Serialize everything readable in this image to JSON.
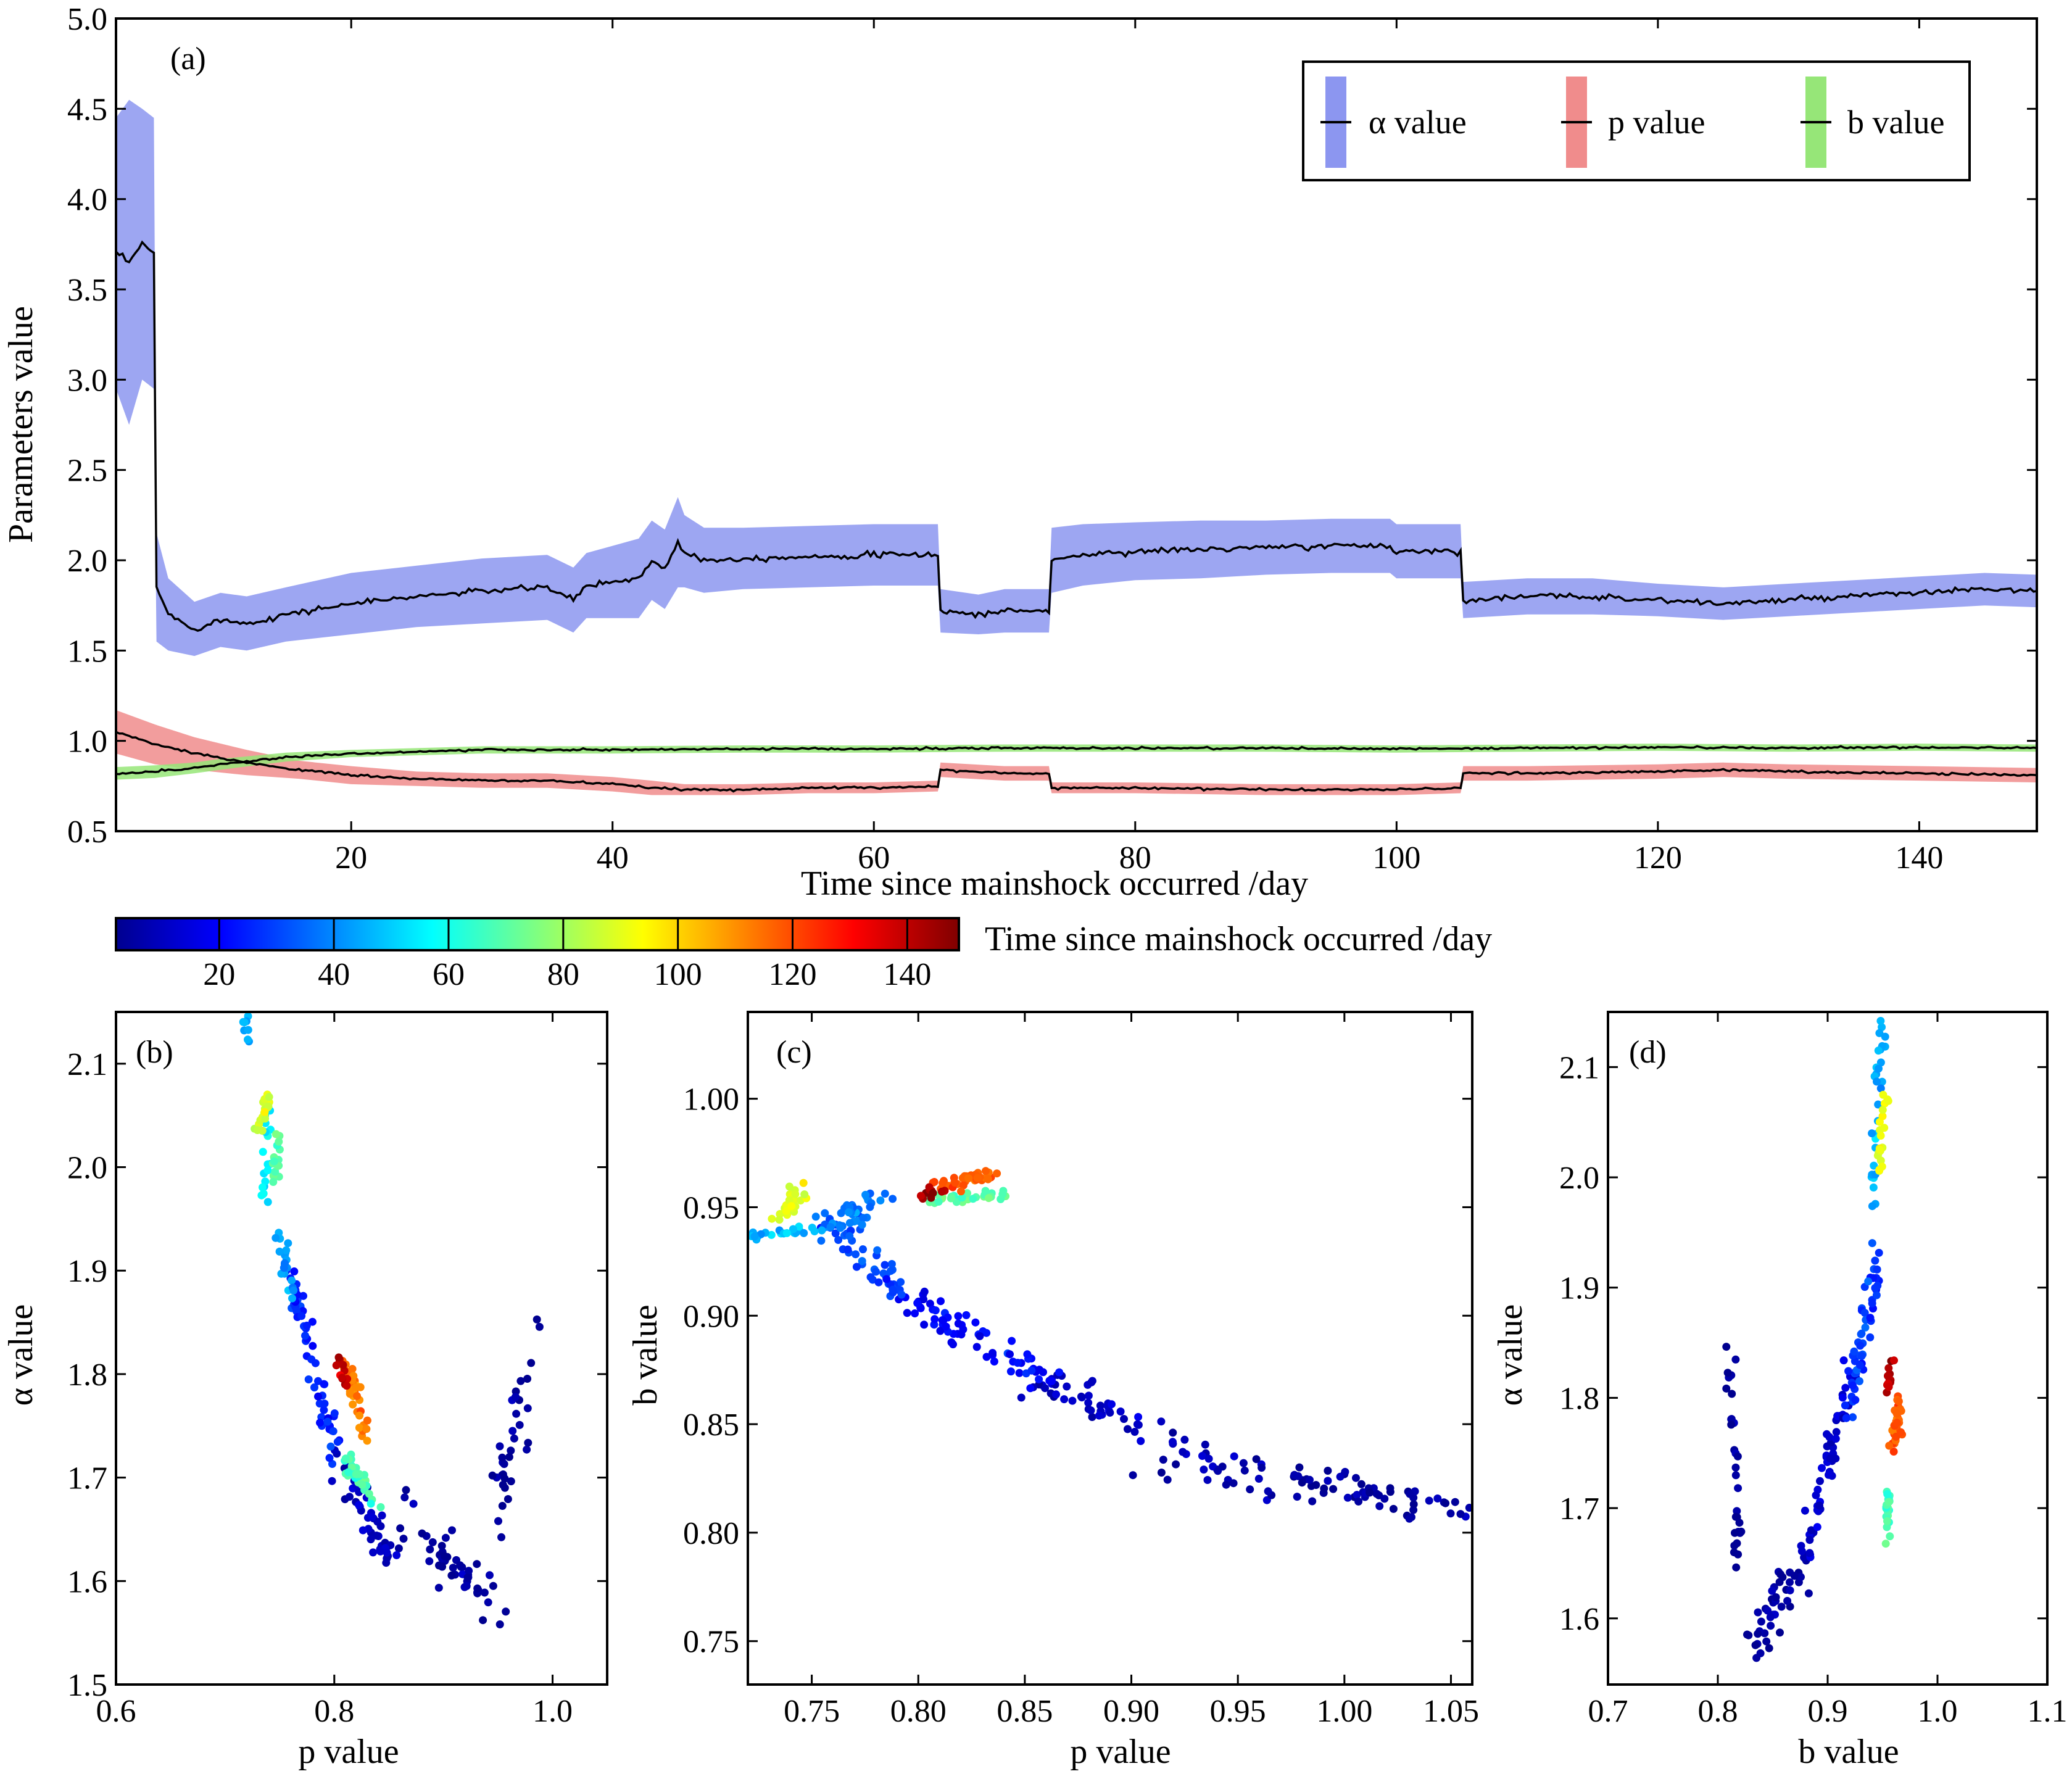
{
  "chart_data": [
    {
      "panel": "(a)",
      "type": "line",
      "xlabel": "Time since mainshock occurred /day",
      "ylabel": "Parameters value",
      "xlim": [
        2,
        149
      ],
      "ylim": [
        0.5,
        5.0
      ],
      "xticks": [
        20,
        40,
        60,
        80,
        100,
        120,
        140
      ],
      "yticks": [
        0.5,
        1.0,
        1.5,
        2.0,
        2.5,
        3.0,
        3.5,
        4.0,
        4.5,
        5.0
      ],
      "ytick_labels": [
        "0.5",
        "1.0",
        "1.5",
        "2.0",
        "2.5",
        "3.0",
        "3.5",
        "4.0",
        "4.5",
        "5.0"
      ],
      "legend": {
        "position": "top-right",
        "entries": [
          "α value",
          "p value",
          "b value"
        ]
      },
      "series": [
        {
          "name": "α value",
          "band_color": "#8c96f0",
          "line_color": "#000000",
          "x": [
            2,
            3,
            4,
            4.9,
            5.1,
            6,
            8,
            10,
            12,
            15,
            20,
            25,
            30,
            35,
            37,
            38,
            40,
            42,
            43,
            44,
            45,
            45.5,
            47,
            50,
            55,
            60,
            64.9,
            65.1,
            68,
            70,
            73.4,
            73.6,
            76,
            80,
            85,
            90,
            95,
            99.5,
            100,
            104.9,
            105.1,
            110,
            115,
            120,
            125,
            130,
            135,
            140,
            145,
            149
          ],
          "y": [
            3.7,
            3.65,
            3.75,
            3.7,
            1.85,
            1.7,
            1.62,
            1.67,
            1.65,
            1.7,
            1.76,
            1.8,
            1.83,
            1.85,
            1.78,
            1.86,
            1.88,
            1.9,
            2.0,
            1.95,
            2.1,
            2.05,
            2.0,
            2.01,
            2.02,
            2.03,
            2.03,
            1.72,
            1.7,
            1.72,
            1.72,
            2.0,
            2.03,
            2.05,
            2.06,
            2.07,
            2.08,
            2.08,
            2.05,
            2.05,
            1.78,
            1.8,
            1.8,
            1.78,
            1.76,
            1.78,
            1.8,
            1.82,
            1.84,
            1.83
          ],
          "band_halfwidth": [
            0.75,
            0.9,
            0.75,
            0.75,
            0.3,
            0.2,
            0.15,
            0.15,
            0.15,
            0.15,
            0.17,
            0.17,
            0.18,
            0.18,
            0.18,
            0.18,
            0.2,
            0.22,
            0.22,
            0.22,
            0.25,
            0.2,
            0.18,
            0.17,
            0.17,
            0.17,
            0.17,
            0.12,
            0.11,
            0.12,
            0.12,
            0.18,
            0.17,
            0.16,
            0.16,
            0.15,
            0.15,
            0.15,
            0.15,
            0.15,
            0.1,
            0.1,
            0.1,
            0.09,
            0.09,
            0.09,
            0.09,
            0.09,
            0.09,
            0.09
          ]
        },
        {
          "name": "p value",
          "band_color": "#f08c8c",
          "line_color": "#000000",
          "x": [
            2,
            5,
            8,
            12,
            16,
            20,
            25,
            30,
            35,
            40,
            43,
            45.5,
            50,
            55,
            60,
            64.9,
            65.1,
            70,
            73.4,
            73.6,
            80,
            90,
            100,
            104.9,
            105.1,
            110,
            120,
            125,
            130,
            140,
            149
          ],
          "y": [
            1.05,
            0.98,
            0.93,
            0.88,
            0.84,
            0.81,
            0.79,
            0.78,
            0.78,
            0.76,
            0.74,
            0.73,
            0.73,
            0.74,
            0.74,
            0.75,
            0.84,
            0.82,
            0.82,
            0.74,
            0.74,
            0.73,
            0.73,
            0.74,
            0.82,
            0.82,
            0.83,
            0.84,
            0.83,
            0.82,
            0.81
          ],
          "band_halfwidth": [
            0.12,
            0.11,
            0.09,
            0.07,
            0.05,
            0.05,
            0.04,
            0.04,
            0.04,
            0.04,
            0.04,
            0.03,
            0.03,
            0.03,
            0.03,
            0.03,
            0.04,
            0.04,
            0.04,
            0.03,
            0.03,
            0.03,
            0.03,
            0.03,
            0.04,
            0.04,
            0.04,
            0.04,
            0.04,
            0.04,
            0.04
          ]
        },
        {
          "name": "b value",
          "band_color": "#96e678",
          "line_color": "#000000",
          "x": [
            2,
            5,
            8,
            10,
            15,
            20,
            25,
            30,
            40,
            50,
            60,
            70,
            80,
            90,
            100,
            110,
            120,
            130,
            140,
            149
          ],
          "y": [
            0.82,
            0.83,
            0.85,
            0.87,
            0.91,
            0.93,
            0.94,
            0.95,
            0.95,
            0.955,
            0.955,
            0.96,
            0.96,
            0.96,
            0.955,
            0.96,
            0.965,
            0.96,
            0.965,
            0.96
          ],
          "band_halfwidth": [
            0.035,
            0.035,
            0.03,
            0.03,
            0.025,
            0.02,
            0.02,
            0.02,
            0.02,
            0.02,
            0.02,
            0.02,
            0.02,
            0.02,
            0.02,
            0.02,
            0.02,
            0.02,
            0.02,
            0.02
          ]
        }
      ]
    },
    {
      "panel": "colorbar",
      "type": "colorbar",
      "label": "Time since mainshock occurred /day",
      "range": [
        2,
        149
      ],
      "ticks": [
        20,
        40,
        60,
        80,
        100,
        120,
        140
      ],
      "colormap": [
        "#00008f",
        "#0000ff",
        "#0080ff",
        "#00ffff",
        "#80ff80",
        "#ffff00",
        "#ff8000",
        "#ff0000",
        "#800000"
      ]
    },
    {
      "panel": "(b)",
      "type": "scatter",
      "xlabel": "p value",
      "ylabel": "α value",
      "xlim": [
        0.6,
        1.05
      ],
      "ylim": [
        1.5,
        2.15
      ],
      "xticks": [
        0.6,
        0.8,
        1.0
      ],
      "xtick_labels": [
        "0.6",
        "0.8",
        "1.0"
      ],
      "yticks": [
        1.5,
        1.6,
        1.7,
        1.8,
        1.9,
        2.0,
        2.1
      ],
      "ytick_labels": [
        "1.5",
        "1.6",
        "1.7",
        "1.8",
        "1.9",
        "2.0",
        "2.1"
      ],
      "clusters": [
        {
          "t": 5,
          "x0": 0.95,
          "y0": 1.57,
          "x1": 0.86,
          "y1": 1.67,
          "n": 50,
          "spread": [
            0.015,
            0.02
          ]
        },
        {
          "t": 3,
          "x0": 0.95,
          "y0": 1.65,
          "x1": 0.98,
          "y1": 1.83,
          "n": 35,
          "spread": [
            0.01,
            0.03
          ]
        },
        {
          "t": 10,
          "x0": 0.85,
          "y0": 1.62,
          "x1": 0.8,
          "y1": 1.72,
          "n": 45,
          "spread": [
            0.01,
            0.015
          ]
        },
        {
          "t": 25,
          "x0": 0.8,
          "y0": 1.72,
          "x1": 0.76,
          "y1": 1.9,
          "n": 55,
          "spread": [
            0.008,
            0.02
          ]
        },
        {
          "t": 43,
          "x0": 0.76,
          "y0": 1.88,
          "x1": 0.75,
          "y1": 1.94,
          "n": 20,
          "spread": [
            0.005,
            0.01
          ]
        },
        {
          "t": 46,
          "x0": 0.72,
          "y0": 2.12,
          "x1": 0.72,
          "y1": 2.15,
          "n": 10,
          "spread": [
            0.004,
            0.01
          ]
        },
        {
          "t": 55,
          "x0": 0.735,
          "y0": 1.97,
          "x1": 0.74,
          "y1": 2.06,
          "n": 20,
          "spread": [
            0.005,
            0.015
          ]
        },
        {
          "t": 88,
          "x0": 0.73,
          "y0": 2.03,
          "x1": 0.74,
          "y1": 2.07,
          "n": 20,
          "spread": [
            0.005,
            0.01
          ]
        },
        {
          "t": 70,
          "x0": 0.745,
          "y0": 1.98,
          "x1": 0.75,
          "y1": 2.03,
          "n": 15,
          "spread": [
            0.005,
            0.01
          ]
        },
        {
          "t": 68,
          "x0": 0.81,
          "y0": 1.72,
          "x1": 0.84,
          "y1": 1.67,
          "n": 30,
          "spread": [
            0.006,
            0.01
          ]
        },
        {
          "t": 112,
          "x0": 0.81,
          "y0": 1.81,
          "x1": 0.83,
          "y1": 1.74,
          "n": 35,
          "spread": [
            0.006,
            0.01
          ]
        },
        {
          "t": 140,
          "x0": 0.8,
          "y0": 1.83,
          "x1": 0.81,
          "y1": 1.79,
          "n": 12,
          "spread": [
            0.004,
            0.01
          ]
        }
      ]
    },
    {
      "panel": "(c)",
      "type": "scatter",
      "xlabel": "p value",
      "ylabel": "b value",
      "xlim": [
        0.72,
        1.06
      ],
      "ylim": [
        0.73,
        1.04
      ],
      "xticks": [
        0.75,
        0.8,
        0.85,
        0.9,
        0.95,
        1.0,
        1.05
      ],
      "xtick_labels": [
        "0.75",
        "0.80",
        "0.85",
        "0.90",
        "0.95",
        "1.00",
        "1.05"
      ],
      "yticks": [
        0.75,
        0.8,
        0.85,
        0.9,
        0.95,
        1.0
      ],
      "ytick_labels": [
        "0.75",
        "0.80",
        "0.85",
        "0.90",
        "0.95",
        "1.00"
      ],
      "clusters": [
        {
          "t": 5,
          "x0": 1.05,
          "y0": 0.81,
          "x1": 0.94,
          "y1": 0.83,
          "n": 80,
          "spread": [
            0.04,
            0.008
          ]
        },
        {
          "t": 10,
          "x0": 0.94,
          "y0": 0.83,
          "x1": 0.86,
          "y1": 0.87,
          "n": 60,
          "spread": [
            0.015,
            0.006
          ]
        },
        {
          "t": 20,
          "x0": 0.86,
          "y0": 0.87,
          "x1": 0.79,
          "y1": 0.91,
          "n": 70,
          "spread": [
            0.01,
            0.006
          ]
        },
        {
          "t": 30,
          "x0": 0.79,
          "y0": 0.91,
          "x1": 0.76,
          "y1": 0.945,
          "n": 55,
          "spread": [
            0.008,
            0.005
          ]
        },
        {
          "t": 38,
          "x0": 0.76,
          "y0": 0.94,
          "x1": 0.78,
          "y1": 0.955,
          "n": 40,
          "spread": [
            0.01,
            0.004
          ]
        },
        {
          "t": 48,
          "x0": 0.72,
          "y0": 0.935,
          "x1": 0.75,
          "y1": 0.94,
          "n": 25,
          "spread": [
            0.006,
            0.003
          ]
        },
        {
          "t": 90,
          "x0": 0.735,
          "y0": 0.945,
          "x1": 0.745,
          "y1": 0.958,
          "n": 25,
          "spread": [
            0.004,
            0.004
          ]
        },
        {
          "t": 70,
          "x0": 0.805,
          "y0": 0.953,
          "x1": 0.84,
          "y1": 0.956,
          "n": 30,
          "spread": [
            0.008,
            0.002
          ]
        },
        {
          "t": 118,
          "x0": 0.81,
          "y0": 0.96,
          "x1": 0.835,
          "y1": 0.965,
          "n": 35,
          "spread": [
            0.007,
            0.003
          ]
        },
        {
          "t": 145,
          "x0": 0.8,
          "y0": 0.955,
          "x1": 0.81,
          "y1": 0.958,
          "n": 10,
          "spread": [
            0.004,
            0.002
          ]
        }
      ]
    },
    {
      "panel": "(d)",
      "type": "scatter",
      "xlabel": "b value",
      "ylabel": "α value",
      "xlim": [
        0.7,
        1.1
      ],
      "ylim": [
        1.54,
        2.15
      ],
      "xticks": [
        0.7,
        0.8,
        0.9,
        1.0,
        1.1
      ],
      "xtick_labels": [
        "0.7",
        "0.8",
        "0.9",
        "1.0",
        "1.1"
      ],
      "yticks": [
        1.6,
        1.7,
        1.8,
        1.9,
        2.0,
        2.1
      ],
      "ytick_labels": [
        "1.6",
        "1.7",
        "1.8",
        "1.9",
        "2.0",
        "2.1"
      ],
      "clusters": [
        {
          "t": 3,
          "x0": 0.81,
          "y0": 1.84,
          "x1": 0.82,
          "y1": 1.64,
          "n": 30,
          "spread": [
            0.005,
            0.03
          ]
        },
        {
          "t": 5,
          "x0": 0.83,
          "y0": 1.57,
          "x1": 0.88,
          "y1": 1.66,
          "n": 45,
          "spread": [
            0.012,
            0.02
          ]
        },
        {
          "t": 12,
          "x0": 0.88,
          "y0": 1.66,
          "x1": 0.92,
          "y1": 1.82,
          "n": 55,
          "spread": [
            0.008,
            0.02
          ]
        },
        {
          "t": 28,
          "x0": 0.92,
          "y0": 1.78,
          "x1": 0.945,
          "y1": 1.93,
          "n": 55,
          "spread": [
            0.007,
            0.02
          ]
        },
        {
          "t": 46,
          "x0": 0.94,
          "y0": 1.98,
          "x1": 0.95,
          "y1": 2.14,
          "n": 30,
          "spread": [
            0.004,
            0.02
          ]
        },
        {
          "t": 90,
          "x0": 0.945,
          "y0": 2.0,
          "x1": 0.955,
          "y1": 2.08,
          "n": 20,
          "spread": [
            0.004,
            0.012
          ]
        },
        {
          "t": 68,
          "x0": 0.955,
          "y0": 1.68,
          "x1": 0.955,
          "y1": 1.72,
          "n": 20,
          "spread": [
            0.003,
            0.012
          ]
        },
        {
          "t": 118,
          "x0": 0.96,
          "y0": 1.75,
          "x1": 0.965,
          "y1": 1.79,
          "n": 35,
          "spread": [
            0.004,
            0.012
          ]
        },
        {
          "t": 142,
          "x0": 0.955,
          "y0": 1.8,
          "x1": 0.958,
          "y1": 1.83,
          "n": 12,
          "spread": [
            0.003,
            0.01
          ]
        }
      ]
    }
  ]
}
